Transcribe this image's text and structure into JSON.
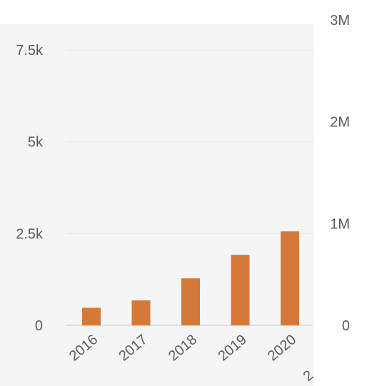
{
  "chart_data": {
    "type": "bar",
    "title": "",
    "xlabel": "",
    "ylabel": "",
    "categories": [
      "2016",
      "2017",
      "2018",
      "2019",
      "2020"
    ],
    "values": [
      480,
      680,
      1280,
      1920,
      2560
    ],
    "ylim_left": [
      0,
      7500
    ],
    "left_ticks": [
      {
        "value": 0,
        "label": "0"
      },
      {
        "value": 2500,
        "label": "2.5k"
      },
      {
        "value": 5000,
        "label": "5k"
      },
      {
        "value": 7500,
        "label": "7.5k"
      }
    ],
    "ylim_right": [
      0,
      3000000
    ],
    "right_ticks": [
      {
        "value": 0,
        "label": "0"
      },
      {
        "value": 1000000,
        "label": "1M"
      },
      {
        "value": 2000000,
        "label": "2M"
      },
      {
        "value": 3000000,
        "label": "3M"
      }
    ],
    "truncated_x_label": "2",
    "bar_color": "#d4793a",
    "grid": true,
    "grid_color": "#e6e6e6",
    "axis_color": "#c9d6ef"
  }
}
